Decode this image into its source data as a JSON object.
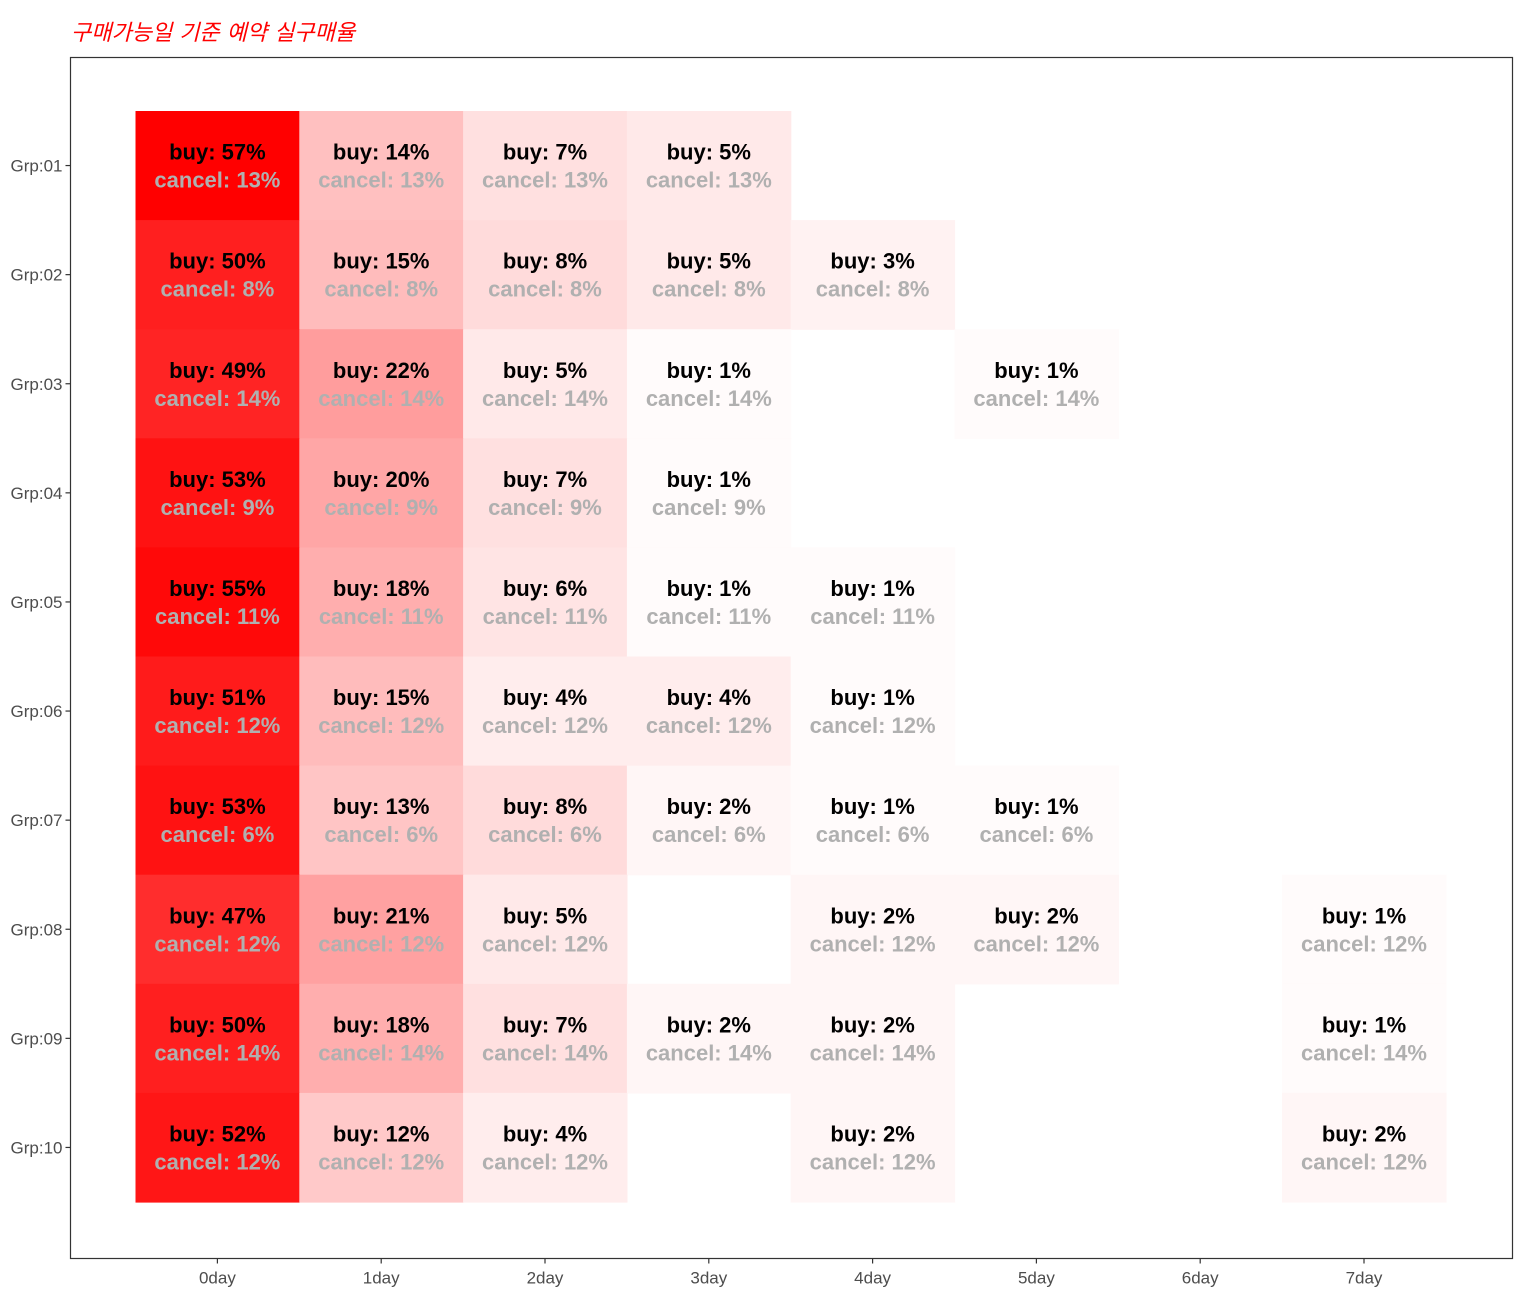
{
  "chart_data": {
    "type": "heatmap",
    "title": "구매가능일 기준 예약 실구매율",
    "xlabel": "",
    "ylabel": "",
    "x_categories": [
      "0day",
      "1day",
      "2day",
      "3day",
      "4day",
      "5day",
      "6day",
      "7day"
    ],
    "y_categories": [
      "Grp:01",
      "Grp:02",
      "Grp:03",
      "Grp:04",
      "Grp:05",
      "Grp:06",
      "Grp:07",
      "Grp:08",
      "Grp:09",
      "Grp:10"
    ],
    "buy_prefix": "buy: ",
    "cancel_prefix": "cancel: ",
    "value_suffix": "%",
    "color_low": "#ffffff",
    "color_high": "#ff0000",
    "buy_max": 57,
    "grid": false,
    "rows": [
      {
        "group": "Grp:01",
        "cancel": 13,
        "buy": [
          57,
          14,
          7,
          5,
          null,
          null,
          null,
          null
        ]
      },
      {
        "group": "Grp:02",
        "cancel": 8,
        "buy": [
          50,
          15,
          8,
          5,
          3,
          null,
          null,
          null
        ]
      },
      {
        "group": "Grp:03",
        "cancel": 14,
        "buy": [
          49,
          22,
          5,
          1,
          null,
          1,
          null,
          null
        ]
      },
      {
        "group": "Grp:04",
        "cancel": 9,
        "buy": [
          53,
          20,
          7,
          1,
          null,
          null,
          null,
          null
        ]
      },
      {
        "group": "Grp:05",
        "cancel": 11,
        "buy": [
          55,
          18,
          6,
          1,
          1,
          null,
          null,
          null
        ]
      },
      {
        "group": "Grp:06",
        "cancel": 12,
        "buy": [
          51,
          15,
          4,
          4,
          1,
          null,
          null,
          null
        ]
      },
      {
        "group": "Grp:07",
        "cancel": 6,
        "buy": [
          53,
          13,
          8,
          2,
          1,
          1,
          null,
          null
        ]
      },
      {
        "group": "Grp:08",
        "cancel": 12,
        "buy": [
          47,
          21,
          5,
          null,
          2,
          2,
          null,
          1
        ]
      },
      {
        "group": "Grp:09",
        "cancel": 14,
        "buy": [
          50,
          18,
          7,
          2,
          2,
          null,
          null,
          1
        ]
      },
      {
        "group": "Grp:10",
        "cancel": 12,
        "buy": [
          52,
          12,
          4,
          null,
          2,
          null,
          null,
          2
        ]
      }
    ]
  }
}
